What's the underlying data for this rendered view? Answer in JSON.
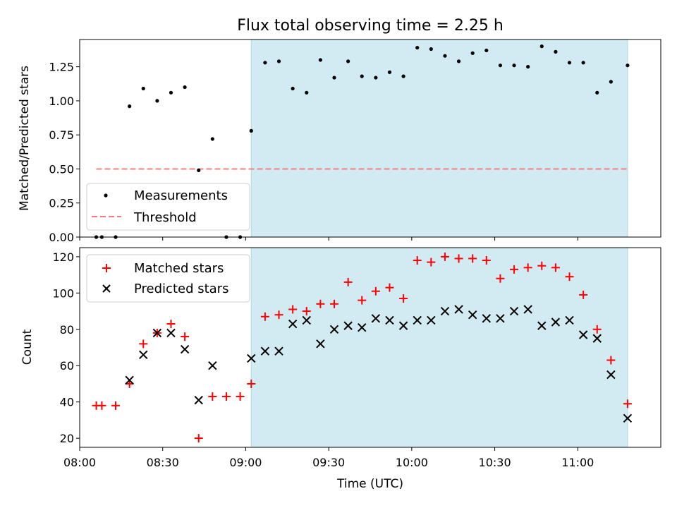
{
  "chart_data": [
    {
      "type": "scatter",
      "title": "Flux total observing time = 2.25 h",
      "xlabel": "",
      "ylabel": "Matched/Predicted stars",
      "ylim": [
        0,
        1.45
      ],
      "yticks": [
        "0.00",
        "0.25",
        "0.50",
        "0.75",
        "1.00",
        "1.25"
      ],
      "shaded_region": {
        "start_min": 542,
        "end_min": 678,
        "color": "#add8e6"
      },
      "legend": {
        "placement": "lower-left",
        "entries": [
          "Measurements",
          "Threshold"
        ]
      },
      "threshold": {
        "name": "Threshold",
        "value": 0.5,
        "x_start_min": 486,
        "x_end_min": 678,
        "color": "#f08080"
      },
      "series": [
        {
          "name": "Measurements",
          "color": "#000000",
          "x_min": [
            486,
            488,
            493,
            498,
            503,
            508,
            513,
            518,
            523,
            528,
            533,
            538,
            542,
            547,
            552,
            557,
            562,
            567,
            572,
            577,
            582,
            587,
            592,
            597,
            602,
            607,
            612,
            617,
            622,
            627,
            632,
            637,
            642,
            647,
            652,
            657,
            662,
            667,
            672,
            678
          ],
          "values": [
            0.0,
            0.0,
            0.0,
            0.96,
            1.09,
            1.0,
            1.06,
            1.1,
            0.49,
            0.72,
            0.0,
            0.0,
            0.78,
            1.28,
            1.29,
            1.09,
            1.06,
            1.3,
            1.17,
            1.29,
            1.18,
            1.17,
            1.21,
            1.18,
            1.39,
            1.38,
            1.33,
            1.29,
            1.35,
            1.37,
            1.26,
            1.26,
            1.25,
            1.4,
            1.36,
            1.28,
            1.28,
            1.06,
            1.14,
            1.26
          ]
        }
      ]
    },
    {
      "type": "scatter",
      "title": "",
      "xlabel": "Time (UTC)",
      "ylabel": "Count",
      "ylim": [
        15,
        125
      ],
      "yticks": [
        "20",
        "40",
        "60",
        "80",
        "100",
        "120"
      ],
      "xticks": [
        "08:00",
        "08:30",
        "09:00",
        "09:30",
        "10:00",
        "10:30",
        "11:00"
      ],
      "shaded_region": {
        "start_min": 542,
        "end_min": 678,
        "color": "#add8e6"
      },
      "legend": {
        "placement": "top-left",
        "entries": [
          "Matched stars",
          "Predicted stars"
        ]
      },
      "series": [
        {
          "name": "Matched stars",
          "marker": "plus",
          "color": "#ff0000",
          "x_min": [
            486,
            488,
            493,
            498,
            503,
            508,
            513,
            518,
            523,
            528,
            533,
            538,
            542,
            547,
            552,
            557,
            562,
            567,
            572,
            577,
            582,
            587,
            592,
            597,
            602,
            607,
            612,
            617,
            622,
            627,
            632,
            637,
            642,
            647,
            652,
            657,
            662,
            667,
            672,
            678
          ],
          "values": [
            38,
            38,
            38,
            50,
            72,
            78,
            83,
            76,
            20,
            43,
            43,
            43,
            50,
            87,
            88,
            91,
            90,
            94,
            94,
            106,
            96,
            101,
            103,
            97,
            118,
            117,
            120,
            119,
            119,
            118,
            108,
            113,
            114,
            115,
            114,
            109,
            99,
            80,
            63,
            39
          ]
        },
        {
          "name": "Predicted stars",
          "marker": "x",
          "color": "#000000",
          "x_min": [
            498,
            503,
            508,
            513,
            518,
            523,
            528,
            542,
            547,
            552,
            557,
            562,
            567,
            572,
            577,
            582,
            587,
            592,
            597,
            602,
            607,
            612,
            617,
            622,
            627,
            632,
            637,
            642,
            647,
            652,
            657,
            662,
            667,
            672,
            678
          ],
          "values": [
            52,
            66,
            78,
            78,
            69,
            41,
            60,
            64,
            68,
            68,
            83,
            85,
            72,
            80,
            82,
            81,
            86,
            85,
            82,
            85,
            85,
            90,
            91,
            88,
            86,
            86,
            90,
            91,
            82,
            84,
            85,
            77,
            75,
            55,
            31
          ]
        }
      ]
    }
  ]
}
